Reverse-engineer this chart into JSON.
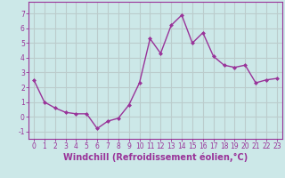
{
  "x": [
    0,
    1,
    2,
    3,
    4,
    5,
    6,
    7,
    8,
    9,
    10,
    11,
    12,
    13,
    14,
    15,
    16,
    17,
    18,
    19,
    20,
    21,
    22,
    23
  ],
  "y": [
    2.5,
    1.0,
    0.6,
    0.3,
    0.2,
    0.2,
    -0.8,
    -0.3,
    -0.1,
    0.8,
    2.3,
    5.3,
    4.3,
    6.2,
    6.9,
    5.0,
    5.7,
    4.1,
    3.5,
    3.35,
    3.5,
    2.3,
    2.5,
    2.6
  ],
  "line_color": "#993399",
  "marker": "D",
  "marker_size": 2.0,
  "bg_color": "#cce8e8",
  "grid_color": "#bbcccc",
  "xlabel": "Windchill (Refroidissement éolien,°C)",
  "xlim": [
    -0.5,
    23.5
  ],
  "ylim": [
    -1.5,
    7.8
  ],
  "yticks": [
    -1,
    0,
    1,
    2,
    3,
    4,
    5,
    6,
    7
  ],
  "xticks": [
    0,
    1,
    2,
    3,
    4,
    5,
    6,
    7,
    8,
    9,
    10,
    11,
    12,
    13,
    14,
    15,
    16,
    17,
    18,
    19,
    20,
    21,
    22,
    23
  ],
  "tick_label_size": 5.5,
  "xlabel_size": 7.0,
  "line_width": 1.0
}
